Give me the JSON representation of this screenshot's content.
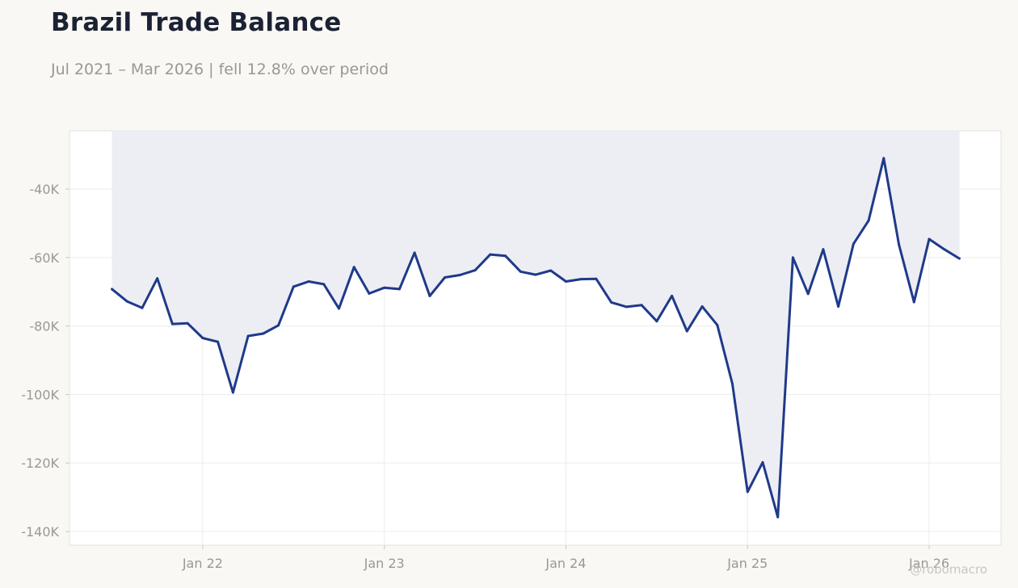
{
  "header": {
    "title": "Brazil Trade Balance",
    "subtitle": "Jul 2021 – Mar 2026 | fell 12.8% over period"
  },
  "watermark": "@robomacro",
  "colors": {
    "line": "#1f3a8a",
    "fill": "#edeef4",
    "grid": "#ececec",
    "background": "#f9f8f5",
    "plot_background": "#ffffff"
  },
  "chart_data": {
    "type": "area",
    "title": "Brazil Trade Balance",
    "xlabel": "",
    "ylabel": "",
    "ylim": [
      -144000,
      -23000
    ],
    "grid": true,
    "y_ticks": [
      {
        "value": -40000,
        "label": "-40K"
      },
      {
        "value": -60000,
        "label": "-60K"
      },
      {
        "value": -80000,
        "label": "-80K"
      },
      {
        "value": -100000,
        "label": "-100K"
      },
      {
        "value": -120000,
        "label": "-120K"
      },
      {
        "value": -140000,
        "label": "-140K"
      }
    ],
    "x_ticks": [
      {
        "index": 6,
        "label": "Jan 22"
      },
      {
        "index": 18,
        "label": "Jan 23"
      },
      {
        "index": 30,
        "label": "Jan 24"
      },
      {
        "index": 42,
        "label": "Jan 25"
      },
      {
        "index": 54,
        "label": "Jan 26"
      }
    ],
    "series": [
      {
        "x": [
          "2021-07",
          "2021-08",
          "2021-09",
          "2021-10",
          "2021-11",
          "2021-12",
          "2022-01",
          "2022-02",
          "2022-03",
          "2022-04",
          "2022-05",
          "2022-06",
          "2022-07",
          "2022-08",
          "2022-09",
          "2022-10",
          "2022-11",
          "2022-12",
          "2023-01",
          "2023-02",
          "2023-03",
          "2023-04",
          "2023-05",
          "2023-06",
          "2023-07",
          "2023-08",
          "2023-09",
          "2023-10",
          "2023-11",
          "2023-12",
          "2024-01",
          "2024-02",
          "2024-03",
          "2024-04",
          "2024-05",
          "2024-06",
          "2024-07",
          "2024-08",
          "2024-09",
          "2024-10",
          "2024-11",
          "2024-12",
          "2025-01",
          "2025-02",
          "2025-03",
          "2025-04",
          "2025-05",
          "2025-06",
          "2025-07",
          "2025-08",
          "2025-09",
          "2025-10",
          "2025-11",
          "2025-12",
          "2026-01",
          "2026-02",
          "2026-03"
        ],
        "values": [
          -69200,
          -72800,
          -74700,
          -66100,
          -79400,
          -79200,
          -83500,
          -84600,
          -99400,
          -82900,
          -82200,
          -79800,
          -68500,
          -67000,
          -67800,
          -74900,
          -62800,
          -70500,
          -68800,
          -69200,
          -58600,
          -71200,
          -65800,
          -65100,
          -63700,
          -59100,
          -59500,
          -64100,
          -65000,
          -63800,
          -67000,
          -66300,
          -66200,
          -73100,
          -74400,
          -73900,
          -78600,
          -71200,
          -81500,
          -74300,
          -79700,
          -96900,
          -128400,
          -119800,
          -135800,
          -60000,
          -70600,
          -57600,
          -74300,
          -56000,
          -49200,
          -31000,
          -56200,
          -73000,
          -54600,
          -57600,
          -60300
        ]
      }
    ]
  }
}
